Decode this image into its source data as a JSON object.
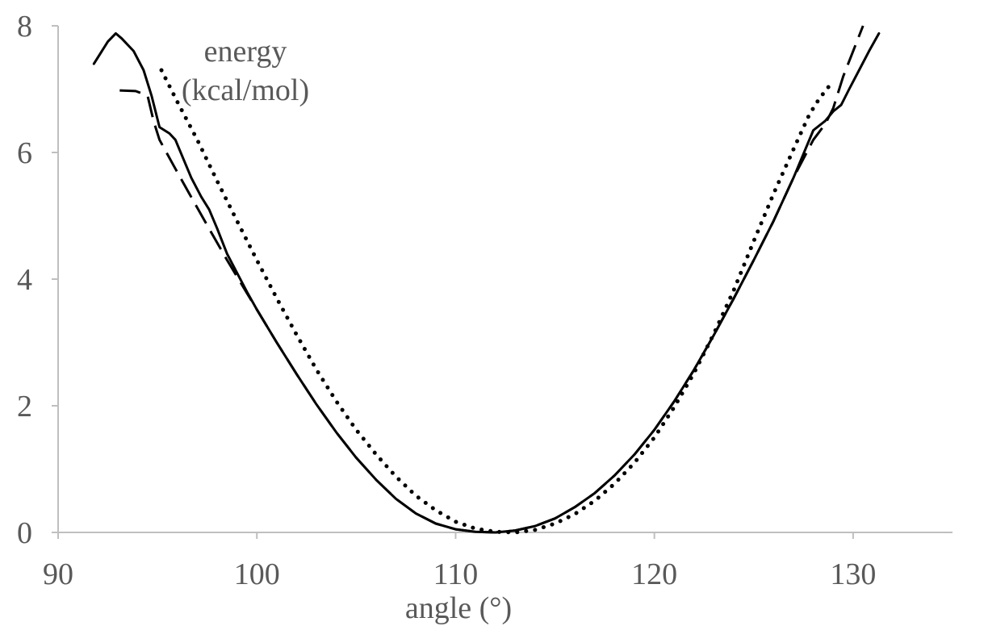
{
  "chart_data": {
    "type": "line",
    "title": "",
    "xlabel": "angle (°)",
    "ylabel_lines": [
      "energy",
      "(kcal/mol)"
    ],
    "xlim": [
      90,
      135
    ],
    "ylim": [
      0,
      8
    ],
    "x_ticks": [
      90,
      100,
      110,
      120,
      130
    ],
    "y_ticks": [
      0,
      2,
      4,
      6,
      8
    ],
    "grid": false,
    "legend": "none",
    "colors": {
      "line": "#000000",
      "axis": "#bfbfbf",
      "text": "#595959"
    },
    "series": [
      {
        "style": "solid",
        "points": [
          [
            91.8,
            7.4
          ],
          [
            92.5,
            7.75
          ],
          [
            92.9,
            7.88
          ],
          [
            93.2,
            7.8
          ],
          [
            93.8,
            7.6
          ],
          [
            94.3,
            7.3
          ],
          [
            94.7,
            6.9
          ],
          [
            95.1,
            6.4
          ],
          [
            95.6,
            6.3
          ],
          [
            95.9,
            6.2
          ],
          [
            96.3,
            5.9
          ],
          [
            96.7,
            5.6
          ],
          [
            97.2,
            5.3
          ],
          [
            97.6,
            5.1
          ],
          [
            98.0,
            4.8
          ],
          [
            98.5,
            4.4
          ],
          [
            99.0,
            4.1
          ],
          [
            99.5,
            3.8
          ],
          [
            100.0,
            3.52
          ],
          [
            101.0,
            3.0
          ],
          [
            102.0,
            2.5
          ],
          [
            103.0,
            2.02
          ],
          [
            104.0,
            1.58
          ],
          [
            105.0,
            1.18
          ],
          [
            106.0,
            0.83
          ],
          [
            107.0,
            0.53
          ],
          [
            108.0,
            0.3
          ],
          [
            109.0,
            0.14
          ],
          [
            110.0,
            0.05
          ],
          [
            111.0,
            0.01
          ],
          [
            112.0,
            0.0
          ],
          [
            113.0,
            0.03
          ],
          [
            114.0,
            0.1
          ],
          [
            115.0,
            0.22
          ],
          [
            116.0,
            0.4
          ],
          [
            117.0,
            0.62
          ],
          [
            118.0,
            0.9
          ],
          [
            119.0,
            1.23
          ],
          [
            120.0,
            1.62
          ],
          [
            121.0,
            2.07
          ],
          [
            122.0,
            2.57
          ],
          [
            123.0,
            3.12
          ],
          [
            124.0,
            3.7
          ],
          [
            125.0,
            4.3
          ],
          [
            126.0,
            4.92
          ],
          [
            127.0,
            5.6
          ],
          [
            128.0,
            6.35
          ],
          [
            128.6,
            6.5
          ],
          [
            129.0,
            6.65
          ],
          [
            129.4,
            6.75
          ],
          [
            129.8,
            7.0
          ],
          [
            130.3,
            7.3
          ],
          [
            130.8,
            7.6
          ],
          [
            131.3,
            7.88
          ]
        ]
      },
      {
        "style": "dashed",
        "points": [
          [
            93.1,
            6.98
          ],
          [
            93.9,
            6.97
          ],
          [
            94.5,
            6.9
          ],
          [
            94.8,
            6.5
          ],
          [
            95.1,
            6.2
          ],
          [
            95.8,
            5.8
          ],
          [
            96.6,
            5.35
          ],
          [
            97.5,
            4.85
          ],
          [
            98.5,
            4.3
          ],
          [
            99.5,
            3.78
          ],
          [
            100.0,
            3.52
          ],
          [
            101.0,
            3.0
          ],
          [
            102.0,
            2.5
          ],
          [
            103.0,
            2.02
          ],
          [
            104.0,
            1.58
          ],
          [
            105.0,
            1.18
          ],
          [
            106.0,
            0.83
          ],
          [
            107.0,
            0.53
          ],
          [
            108.0,
            0.3
          ],
          [
            109.0,
            0.14
          ],
          [
            110.0,
            0.05
          ],
          [
            111.0,
            0.01
          ],
          [
            112.0,
            0.0
          ],
          [
            113.0,
            0.03
          ],
          [
            114.0,
            0.1
          ],
          [
            115.0,
            0.22
          ],
          [
            116.0,
            0.4
          ],
          [
            117.0,
            0.62
          ],
          [
            118.0,
            0.9
          ],
          [
            119.0,
            1.23
          ],
          [
            120.0,
            1.62
          ],
          [
            121.0,
            2.07
          ],
          [
            122.0,
            2.57
          ],
          [
            123.0,
            3.12
          ],
          [
            124.0,
            3.7
          ],
          [
            125.0,
            4.3
          ],
          [
            126.0,
            4.92
          ],
          [
            127.0,
            5.6
          ],
          [
            128.0,
            6.2
          ],
          [
            128.6,
            6.45
          ],
          [
            129.0,
            6.7
          ],
          [
            129.5,
            7.2
          ],
          [
            130.0,
            7.6
          ],
          [
            130.5,
            8.0
          ]
        ]
      },
      {
        "style": "dotted",
        "points": [
          [
            95.2,
            7.3
          ],
          [
            96.0,
            6.8
          ],
          [
            97.0,
            6.2
          ],
          [
            98.0,
            5.55
          ],
          [
            99.0,
            4.92
          ],
          [
            100.0,
            4.3
          ],
          [
            101.0,
            3.7
          ],
          [
            102.0,
            3.12
          ],
          [
            103.0,
            2.57
          ],
          [
            104.0,
            2.07
          ],
          [
            105.0,
            1.62
          ],
          [
            106.0,
            1.23
          ],
          [
            107.0,
            0.88
          ],
          [
            108.0,
            0.58
          ],
          [
            109.0,
            0.35
          ],
          [
            110.0,
            0.17
          ],
          [
            111.0,
            0.06
          ],
          [
            112.0,
            0.01
          ],
          [
            113.0,
            0.0
          ],
          [
            114.0,
            0.04
          ],
          [
            115.0,
            0.14
          ],
          [
            116.0,
            0.29
          ],
          [
            117.0,
            0.5
          ],
          [
            118.0,
            0.77
          ],
          [
            119.0,
            1.1
          ],
          [
            120.0,
            1.5
          ],
          [
            121.0,
            1.98
          ],
          [
            122.0,
            2.52
          ],
          [
            123.0,
            3.14
          ],
          [
            124.0,
            3.83
          ],
          [
            125.0,
            4.6
          ],
          [
            126.0,
            5.35
          ],
          [
            127.0,
            6.05
          ],
          [
            127.8,
            6.6
          ],
          [
            128.3,
            6.85
          ],
          [
            128.8,
            7.05
          ]
        ]
      }
    ]
  }
}
